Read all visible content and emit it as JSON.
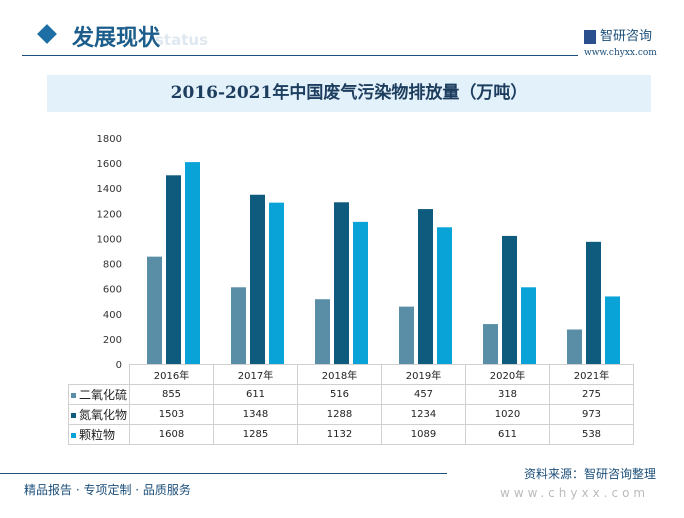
{
  "header": {
    "section_title": "发展现状",
    "section_subtitle": "status",
    "brand": "智研咨询",
    "url": "www.chyxx.com"
  },
  "chart_data": {
    "type": "bar",
    "title": "2016-2021年中国废气污染物排放量（万吨）",
    "categories": [
      "2016年",
      "2017年",
      "2018年",
      "2019年",
      "2020年",
      "2021年"
    ],
    "series": [
      {
        "name": "二氧化硫",
        "values": [
          855,
          611,
          516,
          457,
          318,
          275
        ],
        "color": "#5a8ea6"
      },
      {
        "name": "氮氧化物",
        "values": [
          1503,
          1348,
          1288,
          1234,
          1020,
          973
        ],
        "color": "#0f5b7e"
      },
      {
        "name": "颗粒物",
        "values": [
          1608,
          1285,
          1132,
          1089,
          611,
          538
        ],
        "color": "#0aa3d8"
      }
    ],
    "ylim": [
      0,
      1800
    ],
    "yticks": [
      0,
      200,
      400,
      600,
      800,
      1000,
      1200,
      1400,
      1600,
      1800
    ],
    "grid": false,
    "legend": "data-table"
  },
  "footer": {
    "left": "精品报告 · 专项定制 · 品质服务",
    "source": "资料来源：智研咨询整理",
    "url": "www.chyxx.com"
  }
}
